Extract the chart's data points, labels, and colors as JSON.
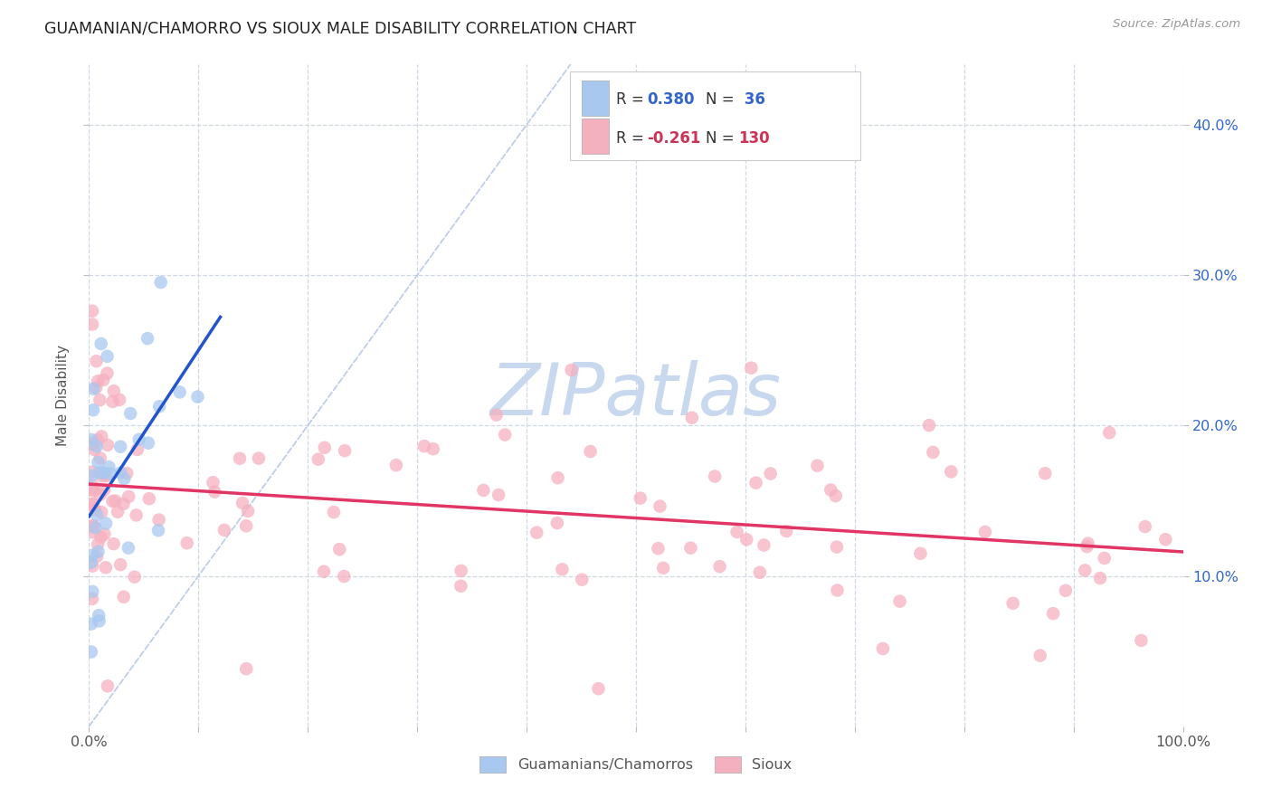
{
  "title": "GUAMANIAN/CHAMORRO VS SIOUX MALE DISABILITY CORRELATION CHART",
  "source": "Source: ZipAtlas.com",
  "ylabel": "Male Disability",
  "r_guam": 0.38,
  "n_guam": 36,
  "r_sioux": -0.261,
  "n_sioux": 130,
  "color_guam": "#a8c8f0",
  "color_sioux": "#f5b0c0",
  "line_color_guam": "#2255cc",
  "line_color_sioux": "#e03565",
  "line_color_diagonal": "#b8c8e8",
  "background_color": "#ffffff",
  "grid_color": "#d0d8e8",
  "xlim": [
    0.0,
    1.0
  ],
  "ylim": [
    0.0,
    0.44
  ],
  "ytick_positions": [
    0.1,
    0.2,
    0.3,
    0.4
  ],
  "ytick_labels": [
    "10.0%",
    "20.0%",
    "30.0%",
    "40.0%"
  ],
  "xtick_labels_left": "0.0%",
  "xtick_labels_right": "100.0%",
  "label_guam": "Guamanians/Chamorros",
  "label_sioux": "Sioux",
  "marker_size": 110,
  "marker_alpha": 0.75,
  "legend_text_color_blue": "#3366cc",
  "legend_text_color_pink": "#cc3355",
  "legend_text_color_dark": "#333333",
  "watermark_color": "#c8d8ee"
}
